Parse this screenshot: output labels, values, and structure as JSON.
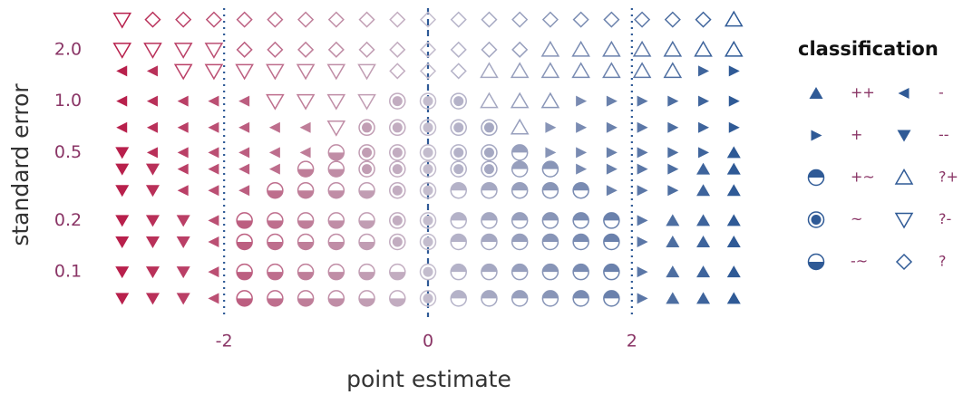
{
  "chart_data": {
    "type": "scatter",
    "x_label": "point estimate",
    "y_label": "standard error",
    "x": [
      -3,
      -2.7,
      -2.4,
      -2.1,
      -1.8,
      -1.5,
      -1.2,
      -0.9,
      -0.6,
      -0.3,
      0,
      0.3,
      0.6,
      0.9,
      1.2,
      1.5,
      1.8,
      2.1,
      2.4,
      2.7,
      3
    ],
    "rows": [
      {
        "y": 3,
        "classes": [
          "?-",
          "?",
          "?",
          "?",
          "?",
          "?",
          "?",
          "?",
          "?",
          "?",
          "?",
          "?",
          "?",
          "?",
          "?",
          "?",
          "?",
          "?",
          "?",
          "?",
          "?+"
        ]
      },
      {
        "y": 2,
        "classes": [
          "?-",
          "?-",
          "?-",
          "?-",
          "?",
          "?",
          "?",
          "?",
          "?",
          "?",
          "?",
          "?",
          "?",
          "?",
          "?+",
          "?+",
          "?+",
          "?+",
          "?+",
          "?+",
          "?+"
        ]
      },
      {
        "y": 1.5,
        "classes": [
          "-",
          "-",
          "?-",
          "?-",
          "?-",
          "?-",
          "?-",
          "?-",
          "?-",
          "?",
          "?",
          "?",
          "?+",
          "?+",
          "?+",
          "?+",
          "?+",
          "?+",
          "?+",
          "+",
          "+"
        ]
      },
      {
        "y": 1,
        "classes": [
          "-",
          "-",
          "-",
          "-",
          "-",
          "?-",
          "?-",
          "?-",
          "?-",
          "~",
          "~",
          "~",
          "?+",
          "?+",
          "?+",
          "+",
          "+",
          "+",
          "+",
          "+",
          "+"
        ]
      },
      {
        "y": 0.7,
        "classes": [
          "-",
          "-",
          "-",
          "-",
          "-",
          "-",
          "-",
          "?-",
          "~",
          "~",
          "~",
          "~",
          "~",
          "?+",
          "+",
          "+",
          "+",
          "+",
          "+",
          "+",
          "+"
        ]
      },
      {
        "y": 0.5,
        "classes": [
          "--",
          "-",
          "-",
          "-",
          "-",
          "-",
          "-",
          "-~",
          "~",
          "~",
          "~",
          "~",
          "~",
          "+~",
          "+",
          "+",
          "+",
          "+",
          "+",
          "+",
          "++"
        ]
      },
      {
        "y": 0.4,
        "classes": [
          "--",
          "--",
          "-",
          "-",
          "-",
          "-",
          "-~",
          "-~",
          "~",
          "~",
          "~",
          "~",
          "~",
          "+~",
          "+~",
          "+",
          "+",
          "+",
          "+",
          "++",
          "++"
        ]
      },
      {
        "y": 0.3,
        "classes": [
          "--",
          "--",
          "-",
          "-",
          "-",
          "-~",
          "-~",
          "-~",
          "-~",
          "~",
          "~",
          "+~",
          "+~",
          "+~",
          "+~",
          "+~",
          "+",
          "+",
          "+",
          "++",
          "++"
        ]
      },
      {
        "y": 0.2,
        "classes": [
          "--",
          "--",
          "--",
          "-",
          "-~",
          "-~",
          "-~",
          "-~",
          "-~",
          "~",
          "~",
          "+~",
          "+~",
          "+~",
          "+~",
          "+~",
          "+~",
          "+",
          "++",
          "++",
          "++"
        ]
      },
      {
        "y": 0.15,
        "classes": [
          "--",
          "--",
          "--",
          "-",
          "-~",
          "-~",
          "-~",
          "-~",
          "-~",
          "~",
          "~",
          "+~",
          "+~",
          "+~",
          "+~",
          "+~",
          "+~",
          "+",
          "++",
          "++",
          "++"
        ]
      },
      {
        "y": 0.1,
        "classes": [
          "--",
          "--",
          "--",
          "-",
          "-~",
          "-~",
          "-~",
          "-~",
          "-~",
          "-~",
          "~",
          "+~",
          "+~",
          "+~",
          "+~",
          "+~",
          "+~",
          "+",
          "++",
          "++",
          "++"
        ]
      },
      {
        "y": 0.07,
        "classes": [
          "--",
          "--",
          "--",
          "-",
          "-~",
          "-~",
          "-~",
          "-~",
          "-~",
          "-~",
          "~",
          "+~",
          "+~",
          "+~",
          "+~",
          "+~",
          "+~",
          "+",
          "++",
          "++",
          "++"
        ]
      }
    ],
    "xlim": [
      -3.3,
      3.3
    ],
    "xticks": [
      -2,
      0,
      2
    ],
    "ylim": [
      0.06,
      3.5
    ],
    "yticks": [
      0.1,
      0.2,
      0.5,
      {
        "value": 1,
        "label": "1.0"
      },
      {
        "value": 2,
        "label": "2.0"
      }
    ],
    "y_scale": "log",
    "colors": {
      "negative": "#b8204c",
      "neutral": "#c3bccd",
      "positive": "#2f5a96"
    },
    "legend": {
      "title": "classification",
      "color": "#2f5a96",
      "entries": [
        "++",
        "+",
        "+~",
        "~",
        "-~",
        "-",
        "--",
        "?+",
        "?-",
        "?"
      ]
    }
  }
}
